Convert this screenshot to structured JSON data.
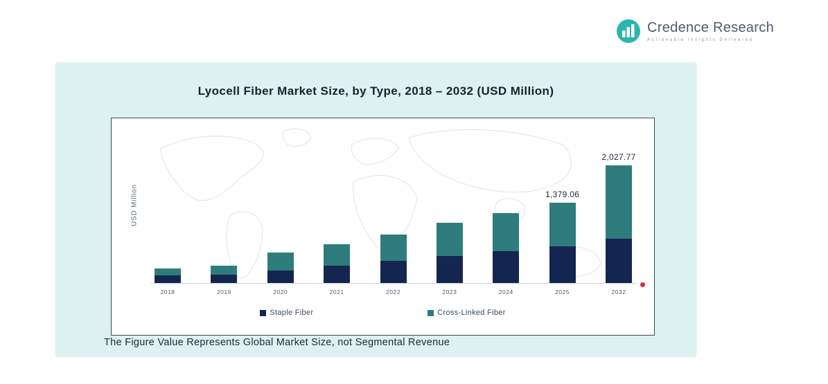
{
  "logo": {
    "name": "Credence Research",
    "tagline": "Actionable Insights Delivered",
    "icon": "bar-chart-circle-icon",
    "accent_color": "#2ab5b0",
    "text_color": "#4d5c6e"
  },
  "panel": {
    "title": "Lyocell Fiber Market Size, by Type, 2018 – 2032 (USD Million)",
    "footnote": "The Figure Value Represents Global Market Size, not Segmental Revenue",
    "background_color": "#ddf1f1"
  },
  "chart_data": {
    "type": "bar",
    "stacked": true,
    "title": "Lyocell Fiber Market Size, by Type, 2018 – 2032 (USD Million)",
    "ylabel": "USD Million",
    "xlabel": "",
    "grid": false,
    "legend_position": "bottom-inside",
    "categories": [
      "2018",
      "2019",
      "2020",
      "2021",
      "2022",
      "2023",
      "2024",
      "2025",
      "2032"
    ],
    "series": [
      {
        "name": "Staple Fiber",
        "color": "#14264f",
        "values": [
          135,
          145,
          215,
          295,
          385,
          470,
          550,
          630,
          765
        ]
      },
      {
        "name": "Cross-Linked Fiber",
        "color": "#2e7d7c",
        "values": [
          115,
          155,
          305,
          370,
          455,
          565,
          650,
          749.06,
          1262.77
        ]
      }
    ],
    "totals": [
      250,
      300,
      520,
      665,
      840,
      1035,
      1200,
      1379.06,
      2027.77
    ],
    "data_labels": [
      "",
      "",
      "",
      "",
      "",
      "",
      "",
      "1,379.06",
      "2,027.77"
    ],
    "baseline_marker_color": "#e02b2b"
  }
}
